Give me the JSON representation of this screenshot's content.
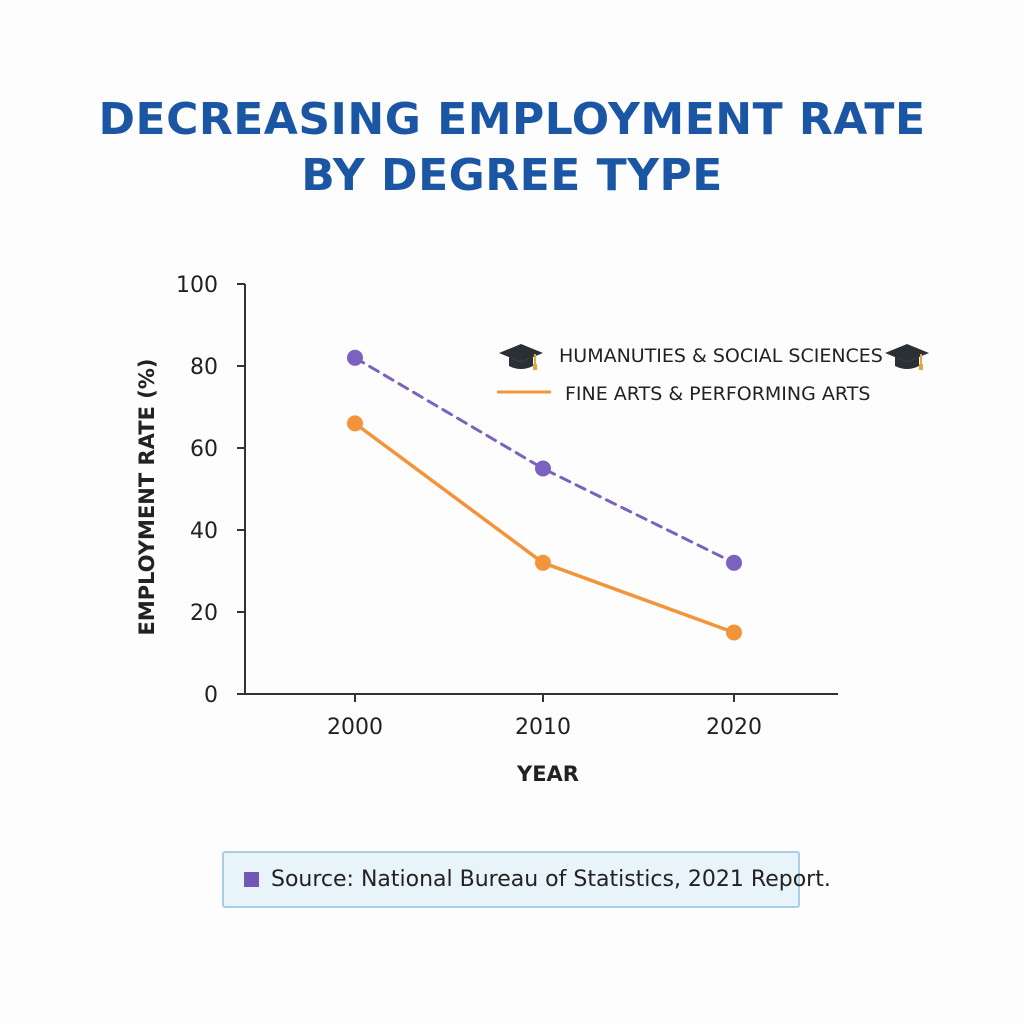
{
  "chart_data": {
    "type": "line",
    "title_lines": [
      "DECREASING EMPLOYMENT RATE",
      "BY DEGREE TYPE"
    ],
    "xlabel": "YEAR",
    "ylabel": "EMPLOYMENT RATE (%)",
    "x": [
      2000,
      2010,
      2020
    ],
    "x_tick_labels": [
      "2000",
      "2010",
      "2020"
    ],
    "ylim": [
      0,
      100
    ],
    "y_ticks": [
      0,
      20,
      40,
      60,
      80,
      100
    ],
    "y_tick_labels": [
      "0",
      "20",
      "40",
      "60",
      "80",
      "100"
    ],
    "grid": false,
    "legend_position": "top-right",
    "series": [
      {
        "name": "HUMANUTIES & SOCIAL SCIENCES",
        "values": [
          82,
          55,
          32
        ],
        "color": "#7b62c0",
        "line_style": "dashed",
        "legend_icon": "graduation-cap-icon"
      },
      {
        "name": "FINE ARTS & PERFORMING ARTS",
        "values": [
          66,
          32,
          15
        ],
        "color": "#f2953a",
        "line_style": "solid"
      }
    ]
  },
  "footer": {
    "source": "Source: National Bureau of Statistics, 2021 Report.",
    "bullet_color": "#6f58b6"
  }
}
